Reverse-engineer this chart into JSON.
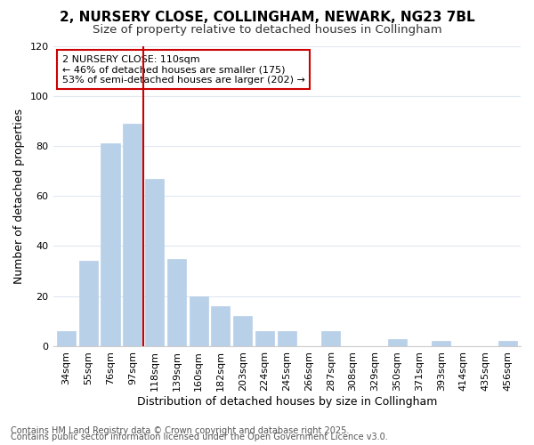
{
  "title1": "2, NURSERY CLOSE, COLLINGHAM, NEWARK, NG23 7BL",
  "title2": "Size of property relative to detached houses in Collingham",
  "xlabel": "Distribution of detached houses by size in Collingham",
  "ylabel": "Number of detached properties",
  "categories": [
    "34sqm",
    "55sqm",
    "76sqm",
    "97sqm",
    "118sqm",
    "139sqm",
    "160sqm",
    "182sqm",
    "203sqm",
    "224sqm",
    "245sqm",
    "266sqm",
    "287sqm",
    "308sqm",
    "329sqm",
    "350sqm",
    "371sqm",
    "393sqm",
    "414sqm",
    "435sqm",
    "456sqm"
  ],
  "values": [
    6,
    34,
    81,
    89,
    67,
    35,
    20,
    16,
    12,
    6,
    6,
    0,
    6,
    0,
    0,
    3,
    0,
    2,
    0,
    0,
    2
  ],
  "bar_color": "#b8d0e8",
  "bar_edge_color": "#b8d0e8",
  "vline_x_index": 4,
  "vline_color": "#cc0000",
  "annotation_text": "2 NURSERY CLOSE: 110sqm\n← 46% of detached houses are smaller (175)\n53% of semi-detached houses are larger (202) →",
  "annotation_box_color": "#ffffff",
  "annotation_box_edge": "#cc0000",
  "background_color": "#ffffff",
  "plot_bg_color": "#ffffff",
  "grid_color": "#e0e8f0",
  "footer1": "Contains HM Land Registry data © Crown copyright and database right 2025.",
  "footer2": "Contains public sector information licensed under the Open Government Licence v3.0.",
  "ylim": [
    0,
    120
  ],
  "title1_fontsize": 11,
  "title2_fontsize": 9.5,
  "xlabel_fontsize": 9,
  "ylabel_fontsize": 9,
  "tick_fontsize": 8,
  "footer_fontsize": 7
}
